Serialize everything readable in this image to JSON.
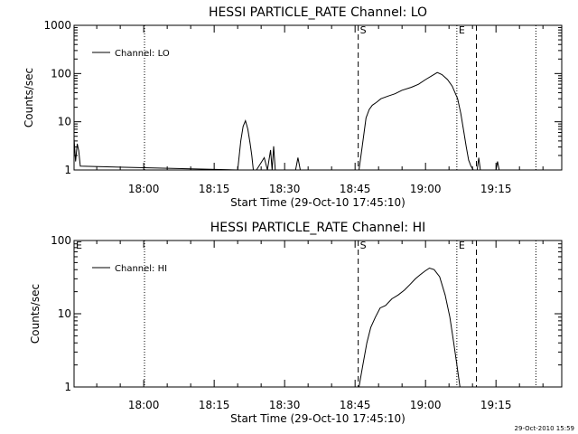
{
  "footer_stamp": "29-Oct-2010 15:59",
  "chart_data": [
    {
      "type": "line",
      "title": "HESSI PARTICLE_RATE Channel: LO",
      "xlabel": "Start Time (29-Oct-10 17:45:10)",
      "ylabel": "Counts/sec",
      "yscale": "log",
      "ylim": [
        1,
        1000
      ],
      "xlim": [
        "17:45:10",
        "19:29:00"
      ],
      "x_ticks": [
        "18:00",
        "18:15",
        "18:30",
        "18:45",
        "19:00",
        "19:15"
      ],
      "y_ticks": [
        "1",
        "10",
        "100",
        "1000"
      ],
      "grid": false,
      "legend": {
        "position": "top-left",
        "entries": [
          "Channel: LO"
        ]
      },
      "series": [
        {
          "name": "Channel: LO",
          "x": [
            "17:45:10",
            "17:45:30",
            "17:45:50",
            "17:46:10",
            "17:46:30",
            "18:20:00",
            "18:20:40",
            "18:21:10",
            "18:21:40",
            "18:22:10",
            "18:22:40",
            "18:23:00",
            "18:23:20",
            "18:23:40",
            "18:24:00",
            "18:25:40",
            "18:26:20",
            "18:27:00",
            "18:27:20",
            "18:27:40",
            "18:28:00",
            "18:28:30",
            "18:32:20",
            "18:32:50",
            "18:33:20",
            "18:45:50",
            "18:46:30",
            "18:47:20",
            "18:48:00",
            "18:48:40",
            "18:49:30",
            "18:50:30",
            "18:52:00",
            "18:53:30",
            "18:55:00",
            "18:57:00",
            "18:58:30",
            "19:00:00",
            "19:01:30",
            "19:02:30",
            "19:03:30",
            "19:04:40",
            "19:05:40",
            "19:06:50",
            "19:07:30",
            "19:08:10",
            "19:08:40",
            "19:09:10",
            "19:09:40",
            "19:10:10",
            "19:11:00",
            "19:11:20",
            "19:11:40",
            "19:15:00",
            "19:15:20",
            "19:15:40"
          ],
          "y": [
            4.5,
            1.5,
            3.5,
            2.5,
            1.2,
            1.0,
            4.0,
            8.0,
            10.5,
            7.0,
            3.5,
            2.0,
            1.0,
            1.0,
            1.0,
            1.8,
            1.0,
            2.6,
            1.0,
            3.1,
            1.0,
            1.0,
            1.0,
            1.8,
            1.0,
            1.0,
            3.0,
            12.0,
            18.0,
            22.0,
            25.0,
            30.0,
            34.0,
            38.0,
            45.0,
            52.0,
            60.0,
            75.0,
            92.0,
            105.0,
            95.0,
            75.0,
            55.0,
            30.0,
            15.0,
            6.0,
            3.0,
            1.6,
            1.2,
            1.0,
            1.0,
            1.8,
            1.0,
            1.0,
            1.5,
            1.0
          ]
        }
      ],
      "annotations": [
        {
          "label": "S",
          "time": "18:45:40",
          "line": "dashed"
        },
        {
          "label": "E",
          "time": "19:06:40",
          "line": "dotted"
        },
        {
          "label": "",
          "time": "19:10:50",
          "line": "dashed"
        },
        {
          "label": "",
          "time": "18:00:10",
          "line": "dotted"
        },
        {
          "label": "",
          "time": "19:23:30",
          "line": "dotted"
        }
      ]
    },
    {
      "type": "line",
      "title": "HESSI PARTICLE_RATE Channel: HI",
      "xlabel": "Start Time (29-Oct-10 17:45:10)",
      "ylabel": "Counts/sec",
      "yscale": "log",
      "ylim": [
        1,
        100
      ],
      "xlim": [
        "17:45:10",
        "19:29:00"
      ],
      "x_ticks": [
        "18:00",
        "18:15",
        "18:30",
        "18:45",
        "19:00",
        "19:15"
      ],
      "y_ticks": [
        "1",
        "10",
        "100"
      ],
      "grid": false,
      "legend": {
        "position": "top-left",
        "entries": [
          "Channel: HI"
        ]
      },
      "series": [
        {
          "name": "Channel: HI",
          "x": [
            "18:45:50",
            "18:46:40",
            "18:47:30",
            "18:48:20",
            "18:49:20",
            "18:50:20",
            "18:51:30",
            "18:52:50",
            "18:54:10",
            "18:55:30",
            "18:56:40",
            "18:57:50",
            "18:58:50",
            "18:59:50",
            "19:00:50",
            "19:01:50",
            "19:03:00",
            "19:04:10",
            "19:05:10",
            "19:06:00",
            "19:06:40",
            "19:07:20"
          ],
          "y": [
            1.0,
            2.0,
            4.0,
            6.5,
            9.0,
            12.0,
            13.0,
            16.0,
            18.0,
            21.0,
            25.0,
            30.0,
            34.0,
            38.0,
            42.0,
            40.0,
            32.0,
            18.0,
            9.0,
            4.0,
            2.0,
            1.0
          ]
        }
      ],
      "annotations": [
        {
          "label": "S",
          "time": "18:45:40",
          "line": "dashed"
        },
        {
          "label": "E",
          "time": "19:06:40",
          "line": "dotted"
        },
        {
          "label": "",
          "time": "19:10:50",
          "line": "dashed"
        },
        {
          "label": "",
          "time": "18:00:10",
          "line": "dotted"
        },
        {
          "label": "",
          "time": "19:23:30",
          "line": "dotted"
        },
        {
          "label": "E",
          "time": "17:45:10",
          "line": "none"
        }
      ]
    }
  ]
}
